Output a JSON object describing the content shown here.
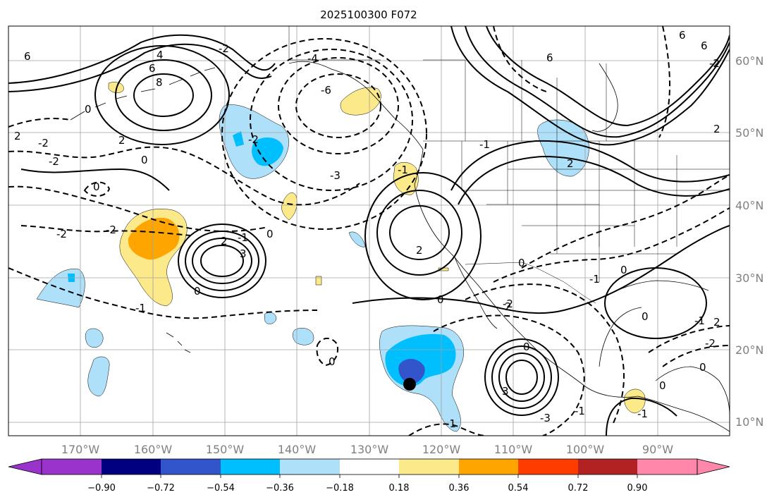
{
  "title": "2025100300 F072",
  "latitude_labels": [
    "60°N",
    "50°N",
    "40°N",
    "30°N",
    "20°N",
    "10°N"
  ],
  "longitude_labels": [
    "170°W",
    "160°W",
    "150°W",
    "140°W",
    "130°W",
    "120°W",
    "110°W",
    "100°W",
    "90°W"
  ],
  "colorbar": {
    "tick_labels": [
      "−0.90",
      "−0.72",
      "−0.54",
      "−0.36",
      "−0.18",
      "0.18",
      "0.36",
      "0.54",
      "0.72",
      "0.90"
    ],
    "colors": [
      "#9933cc",
      "#000080",
      "#3355cc",
      "#00bfff",
      "#aee0fa",
      "#ffffff",
      "#fce98a",
      "#ffa500",
      "#ff3c00",
      "#b22222",
      "#ff88aa"
    ]
  },
  "fill_colors": {
    "light_blue": "#aee0fa",
    "blue": "#00bfff",
    "dark_blue": "#3355cc",
    "light_yellow": "#fce98a",
    "orange": "#ffa500"
  },
  "contour_labels": [
    {
      "text": "6"
    },
    {
      "text": "4"
    },
    {
      "text": "6"
    },
    {
      "text": "8"
    },
    {
      "text": "2"
    },
    {
      "text": "6"
    },
    {
      "text": "0"
    },
    {
      "text": "2"
    },
    {
      "text": "2"
    },
    {
      "text": "0"
    },
    {
      "text": "0"
    },
    {
      "text": "2"
    },
    {
      "text": "2"
    },
    {
      "text": "-2"
    },
    {
      "text": "-2"
    },
    {
      "text": "-1"
    },
    {
      "text": "2"
    },
    {
      "text": "-1"
    },
    {
      "text": "0"
    },
    {
      "text": "3"
    },
    {
      "text": "0"
    },
    {
      "text": "-4"
    },
    {
      "text": "-6"
    },
    {
      "text": "-2"
    },
    {
      "text": "-3"
    },
    {
      "text": "-1"
    },
    {
      "text": "-2"
    },
    {
      "text": "2"
    },
    {
      "text": "0"
    },
    {
      "text": "0"
    },
    {
      "text": "0"
    },
    {
      "text": "-2"
    },
    {
      "text": "-1"
    },
    {
      "text": "-2"
    },
    {
      "text": "0"
    },
    {
      "text": "3"
    },
    {
      "text": "-1"
    },
    {
      "text": "-1"
    },
    {
      "text": "6"
    },
    {
      "text": "-2"
    },
    {
      "text": "-2"
    },
    {
      "text": "6"
    },
    {
      "text": "2"
    },
    {
      "text": "0"
    },
    {
      "text": "-1"
    },
    {
      "text": "0"
    },
    {
      "text": "-1"
    },
    {
      "text": "-2"
    },
    {
      "text": "0"
    },
    {
      "text": "0"
    },
    {
      "text": "-1"
    },
    {
      "text": "-3"
    }
  ],
  "marker": {
    "name": "black circle",
    "lon": -124.5,
    "lat": 15.5
  }
}
